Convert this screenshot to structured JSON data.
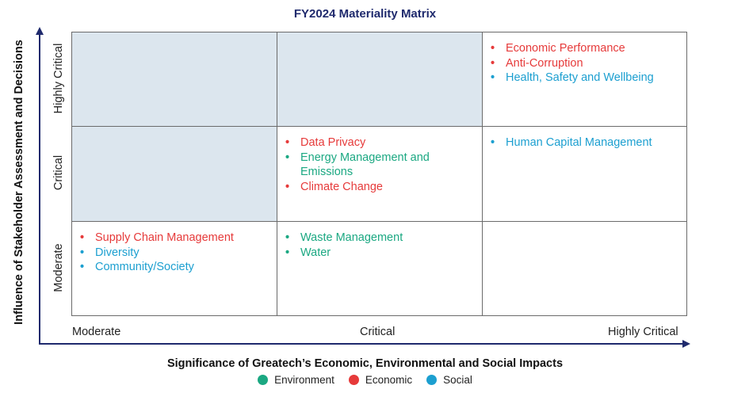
{
  "title": "FY2024 Materiality Matrix",
  "y_axis": {
    "label": "Influence of Stakeholder Assessment and Decisions",
    "ticks": [
      "Highly Critical",
      "Critical",
      "Moderate"
    ]
  },
  "x_axis": {
    "label": "Significance of Greatech’s Economic, Environmental and Social Impacts",
    "ticks": [
      "Moderate",
      "Critical",
      "Highly Critical"
    ]
  },
  "colors": {
    "environment": "#1ba882",
    "economic": "#e63a3a",
    "social": "#1c9fd0",
    "shaded_cell": "#dce6ee",
    "axis": "#1f2a6d"
  },
  "legend": [
    {
      "label": "Environment",
      "category": "environment"
    },
    {
      "label": "Economic",
      "category": "economic"
    },
    {
      "label": "Social",
      "category": "social"
    }
  ],
  "matrix": [
    {
      "row": "Highly Critical",
      "col": "Moderate",
      "shaded": true,
      "items": []
    },
    {
      "row": "Highly Critical",
      "col": "Critical",
      "shaded": true,
      "items": []
    },
    {
      "row": "Highly Critical",
      "col": "Highly Critical",
      "shaded": false,
      "items": [
        {
          "label": "Economic Performance",
          "category": "economic"
        },
        {
          "label": "Anti-Corruption",
          "category": "economic"
        },
        {
          "label": "Health, Safety and Wellbeing",
          "category": "social"
        }
      ]
    },
    {
      "row": "Critical",
      "col": "Moderate",
      "shaded": true,
      "items": []
    },
    {
      "row": "Critical",
      "col": "Critical",
      "shaded": false,
      "items": [
        {
          "label": "Data Privacy",
          "category": "economic"
        },
        {
          "label": "Energy Management and Emissions",
          "category": "environment"
        },
        {
          "label": "Climate Change",
          "category": "economic"
        }
      ]
    },
    {
      "row": "Critical",
      "col": "Highly Critical",
      "shaded": false,
      "items": [
        {
          "label": "Human Capital Management",
          "category": "social"
        }
      ]
    },
    {
      "row": "Moderate",
      "col": "Moderate",
      "shaded": false,
      "items": [
        {
          "label": "Supply Chain Management",
          "category": "economic"
        },
        {
          "label": "Diversity",
          "category": "social"
        },
        {
          "label": "Community/Society",
          "category": "social"
        }
      ]
    },
    {
      "row": "Moderate",
      "col": "Critical",
      "shaded": false,
      "items": [
        {
          "label": "Waste Management",
          "category": "environment"
        },
        {
          "label": "Water",
          "category": "environment"
        }
      ]
    },
    {
      "row": "Moderate",
      "col": "Highly Critical",
      "shaded": false,
      "items": []
    }
  ]
}
